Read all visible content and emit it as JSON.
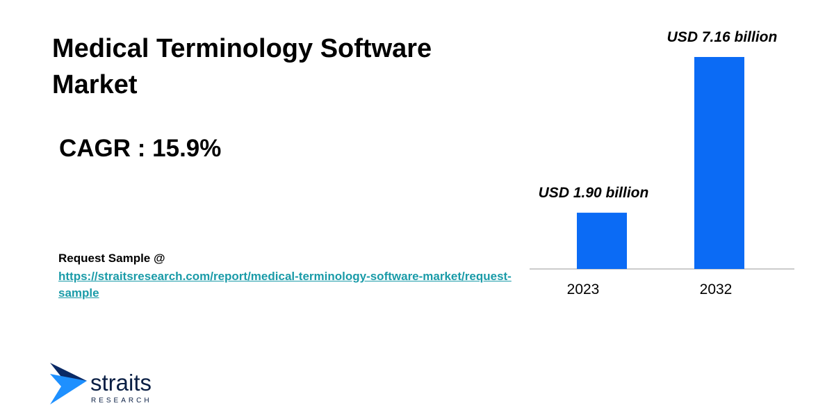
{
  "title": "Medical Terminology Software Market",
  "cagr": "CAGR : 15.9%",
  "request": {
    "label": "Request Sample @",
    "url": "https://straitsresearch.com/report/medical-terminology-software-market/request-sample"
  },
  "logo": {
    "name": "straits",
    "sub": "RESEARCH"
  },
  "chart_data": {
    "type": "bar",
    "categories": [
      "2023",
      "2032"
    ],
    "values": [
      1.9,
      7.16
    ],
    "value_labels": [
      "USD 1.90 billion",
      "USD 7.16 billion"
    ],
    "color": "#0b6bf5"
  }
}
